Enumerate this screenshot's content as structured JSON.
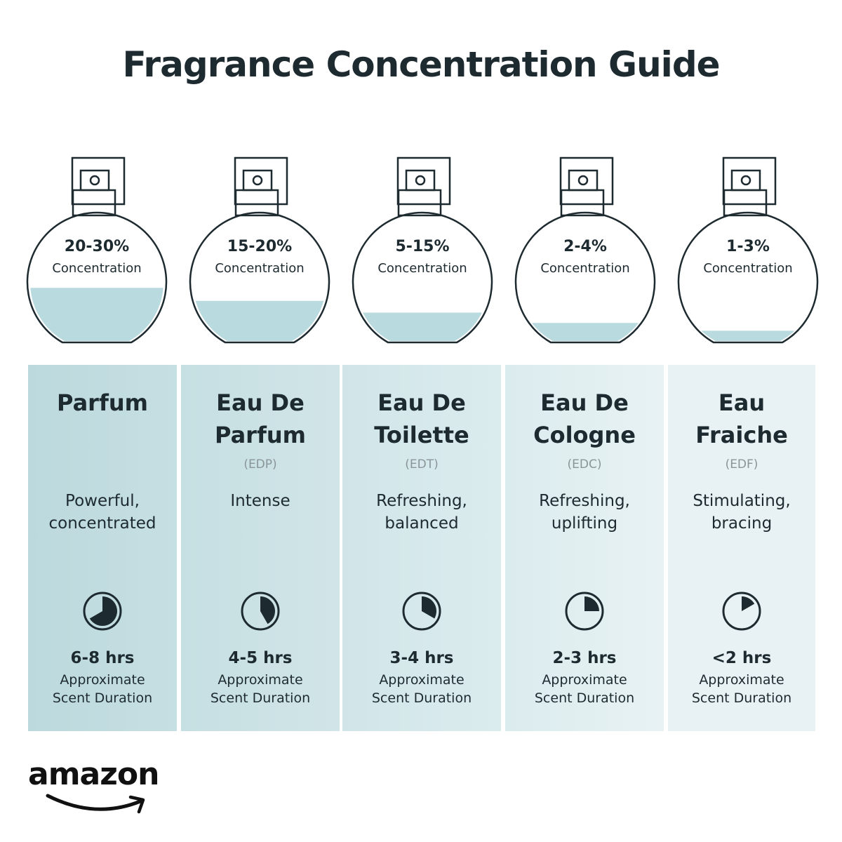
{
  "title": "Fragrance Concentration Guide",
  "colors": {
    "liquid": "#b9dade",
    "outline": "#1d2a30",
    "column_left": "#bcd9dd",
    "column_right": "#edf5f6"
  },
  "types": [
    {
      "name_line1": "Parfum",
      "name_line2": "",
      "abbr": "",
      "concentration": "20-30%",
      "concentration_label": "Concentration",
      "fill_fraction": 0.42,
      "description": "Powerful, concentrated",
      "duration": "6-8 hrs",
      "duration_label_1": "Approximate",
      "duration_label_2": "Scent Duration",
      "clock_fraction": 0.667,
      "icon": "clock-icon"
    },
    {
      "name_line1": "Eau De",
      "name_line2": "Parfum",
      "abbr": "(EDP)",
      "concentration": "15-20%",
      "concentration_label": "Concentration",
      "fill_fraction": 0.32,
      "description": "Intense",
      "duration": "4-5 hrs",
      "duration_label_1": "Approximate",
      "duration_label_2": "Scent Duration",
      "clock_fraction": 0.417,
      "icon": "clock-icon"
    },
    {
      "name_line1": "Eau De",
      "name_line2": "Toilette",
      "abbr": "(EDT)",
      "concentration": "5-15%",
      "concentration_label": "Concentration",
      "fill_fraction": 0.23,
      "description": "Refreshing, balanced",
      "duration": "3-4 hrs",
      "duration_label_1": "Approximate",
      "duration_label_2": "Scent Duration",
      "clock_fraction": 0.333,
      "icon": "clock-icon"
    },
    {
      "name_line1": "Eau De",
      "name_line2": "Cologne",
      "abbr": "(EDC)",
      "concentration": "2-4%",
      "concentration_label": "Concentration",
      "fill_fraction": 0.15,
      "description": "Refreshing, uplifting",
      "duration": "2-3 hrs",
      "duration_label_1": "Approximate",
      "duration_label_2": "Scent Duration",
      "clock_fraction": 0.25,
      "icon": "clock-icon"
    },
    {
      "name_line1": "Eau",
      "name_line2": "Fraiche",
      "abbr": "(EDF)",
      "concentration": "1-3%",
      "concentration_label": "Concentration",
      "fill_fraction": 0.09,
      "description": "Stimulating, bracing",
      "duration": "<2 hrs",
      "duration_label_1": "Approximate",
      "duration_label_2": "Scent Duration",
      "clock_fraction": 0.167,
      "icon": "clock-icon"
    }
  ],
  "logo": "amazon"
}
